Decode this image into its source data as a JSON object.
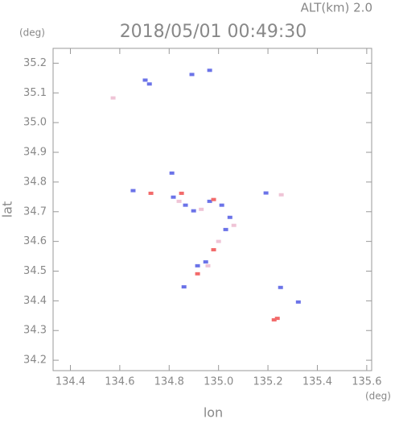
{
  "chart_data": {
    "type": "scatter",
    "title": "2018/05/01 00:49:30",
    "annotation": "ALT(km) 2.0",
    "y_unit": "(deg)",
    "x_unit": "(deg)",
    "xlabel": "lon",
    "ylabel": "lat",
    "xlim": [
      134.33,
      135.62
    ],
    "ylim": [
      34.165,
      35.25
    ],
    "xticks": [
      134.4,
      134.6,
      134.8,
      {
        "value": 135,
        "label": "135.0"
      },
      135.2,
      135.4,
      135.6
    ],
    "yticks": [
      34.2,
      34.3,
      34.4,
      34.5,
      34.6,
      34.7,
      34.8,
      34.9,
      {
        "value": 35,
        "label": "35.0"
      },
      35.1,
      35.2
    ],
    "series": [
      {
        "color": "#6b73e8",
        "x": [
          134.703,
          134.72,
          134.892,
          134.964,
          134.811,
          134.654,
          134.817,
          134.866,
          134.899,
          134.964,
          135.013,
          135.046,
          135.029,
          134.915,
          134.948,
          134.86,
          135.192,
          135.323,
          135.251
        ],
        "values": [
          35.143,
          35.13,
          35.162,
          35.176,
          34.83,
          34.771,
          34.749,
          34.722,
          34.703,
          34.735,
          34.722,
          34.681,
          34.64,
          34.518,
          34.531,
          34.447,
          34.763,
          34.396,
          34.445
        ]
      },
      {
        "color": "#f26a6a",
        "x": [
          134.726,
          134.85,
          134.98,
          134.98,
          134.915,
          135.225,
          135.238
        ],
        "values": [
          34.762,
          34.762,
          34.741,
          34.572,
          34.491,
          34.336,
          34.341
        ]
      },
      {
        "color": "#efc4d6",
        "x": [
          134.84,
          134.93,
          135.062,
          135.254,
          135.0,
          134.957,
          134.573
        ],
        "values": [
          34.735,
          34.708,
          34.654,
          34.757,
          34.6,
          34.518,
          35.083
        ]
      }
    ]
  }
}
